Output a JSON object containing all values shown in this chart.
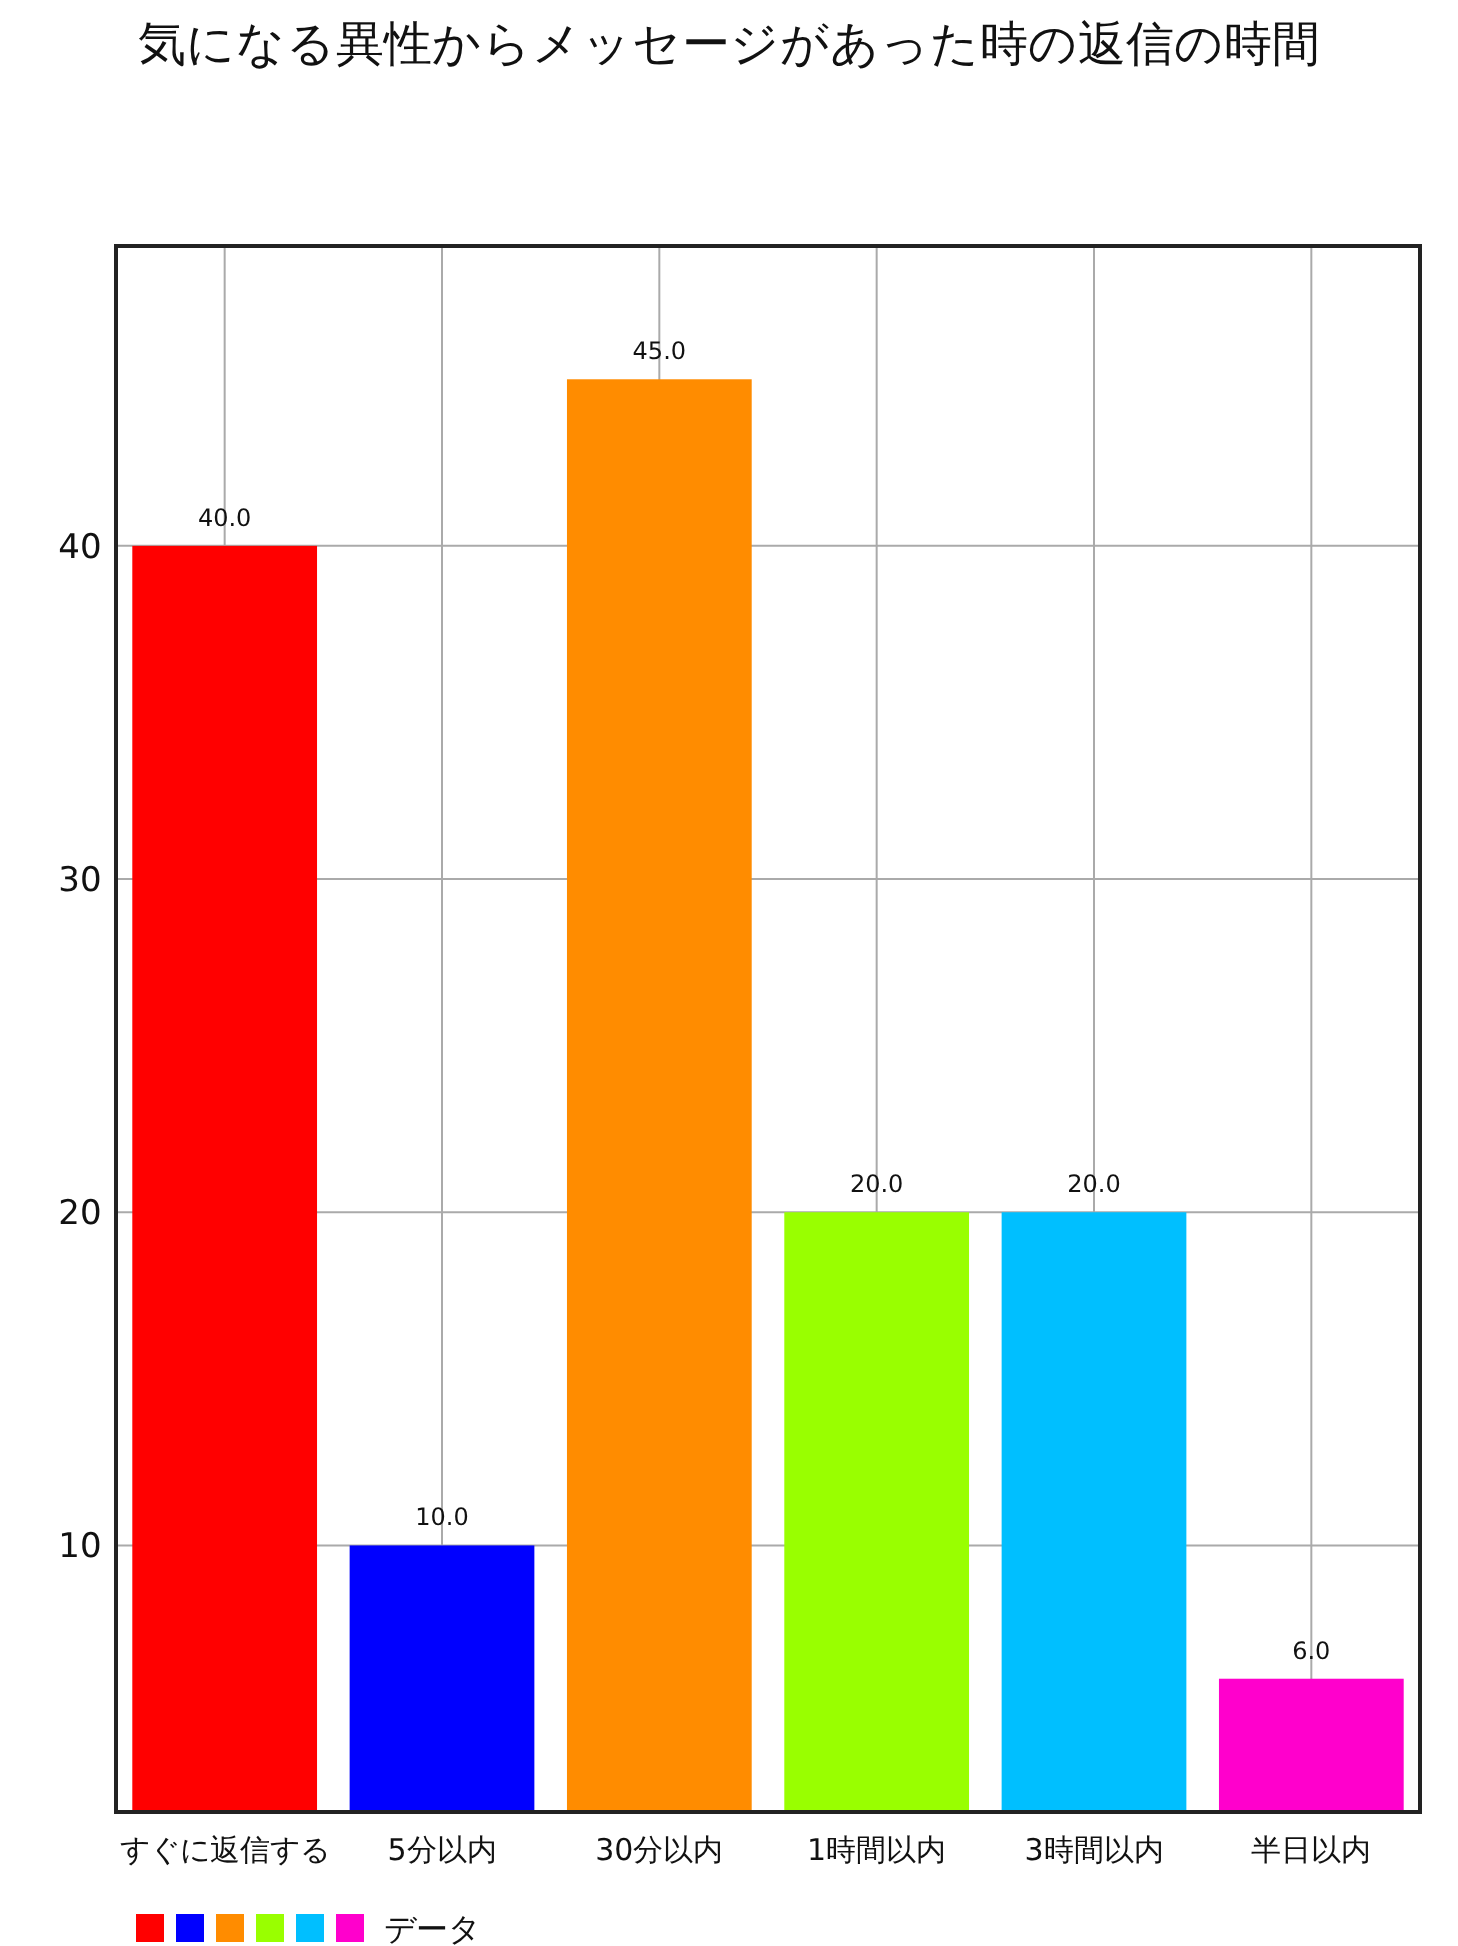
{
  "chart_data": {
    "type": "bar",
    "title": "気になる異性からメッセージがあった時の返信の時間",
    "categories": [
      "すぐに返信する",
      "5分以内",
      "30分以内",
      "1時間以内",
      "3時間以内",
      "半日以内"
    ],
    "series": [
      {
        "name": "データ",
        "colors": [
          "#ff0000",
          "#0000ff",
          "#ff8c00",
          "#99ff00",
          "#00bfff",
          "#ff00cc"
        ],
        "values": [
          40,
          10,
          45,
          20,
          20,
          6
        ],
        "value_labels": [
          "40.0",
          "10.0",
          "45.0",
          "20.0",
          "20.0",
          "6.0"
        ]
      }
    ],
    "ylim": [
      2,
      49
    ],
    "yticks": [
      10,
      20,
      30,
      40
    ],
    "grid": true,
    "legend": "bottom left"
  }
}
